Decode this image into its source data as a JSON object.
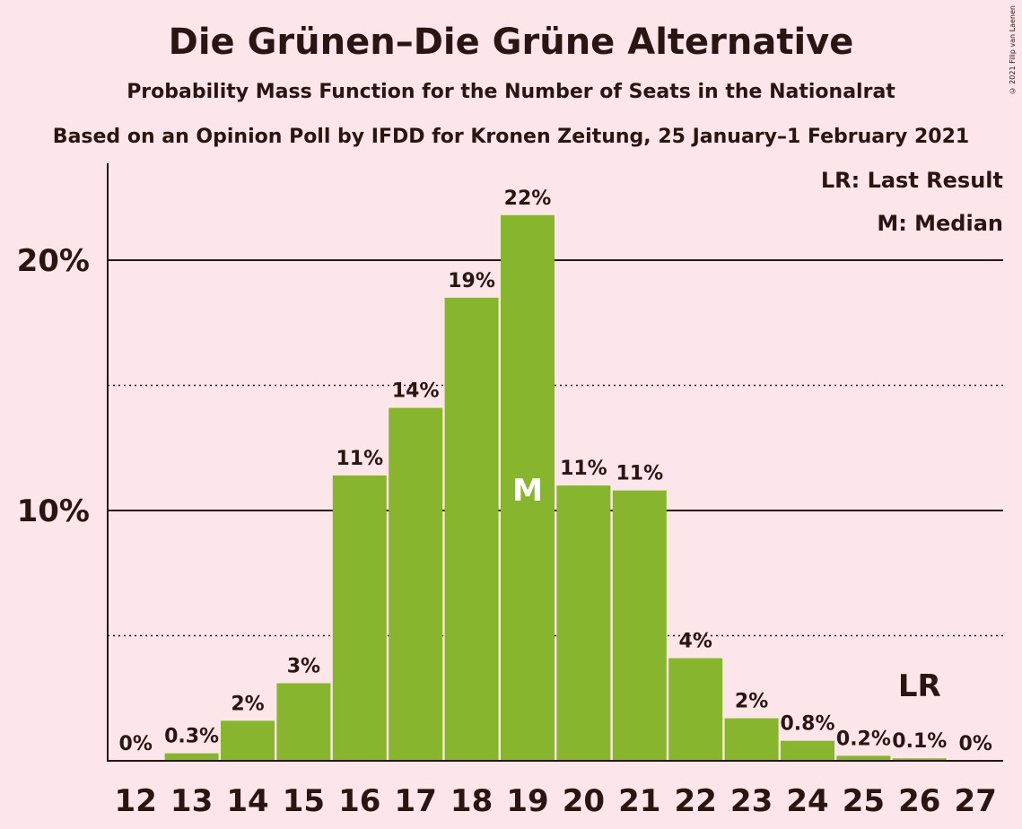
{
  "header": {
    "title": "Die Grünen–Die Grüne Alternative",
    "subtitle": "Probability Mass Function for the Number of Seats in the Nationalrat",
    "source": "Based on an Opinion Poll by IFDD for Kronen Zeitung, 25 January–1 February 2021",
    "copyright": "© 2021 Filip van Laenen"
  },
  "legend": {
    "last_result": "LR: Last Result",
    "median": "M: Median"
  },
  "colors": {
    "background": "#fde6ea",
    "bar": "#88b52e",
    "text": "#2a1512"
  },
  "chart_data": {
    "type": "bar",
    "categories": [
      "12",
      "13",
      "14",
      "15",
      "16",
      "17",
      "18",
      "19",
      "20",
      "21",
      "22",
      "23",
      "24",
      "25",
      "26",
      "27"
    ],
    "values": [
      0,
      0.3,
      1.6,
      3.1,
      11.4,
      14.1,
      18.5,
      21.8,
      11.0,
      10.8,
      4.1,
      1.7,
      0.8,
      0.2,
      0.1,
      0
    ],
    "data_labels": [
      "0%",
      "0.3%",
      "2%",
      "3%",
      "11%",
      "14%",
      "19%",
      "22%",
      "11%",
      "11%",
      "4%",
      "2%",
      "0.8%",
      "0.2%",
      "0.1%",
      "0%"
    ],
    "ylim": [
      0,
      23.7
    ],
    "y_ticks": [
      {
        "value": 10,
        "label": "10%"
      },
      {
        "value": 20,
        "label": "20%"
      }
    ],
    "y_minor_gridlines": [
      5,
      15
    ],
    "median": {
      "category": "19",
      "label": "M"
    },
    "last_result": {
      "category": "26",
      "label": "LR"
    },
    "grid": true,
    "legend_position": "top-right"
  }
}
